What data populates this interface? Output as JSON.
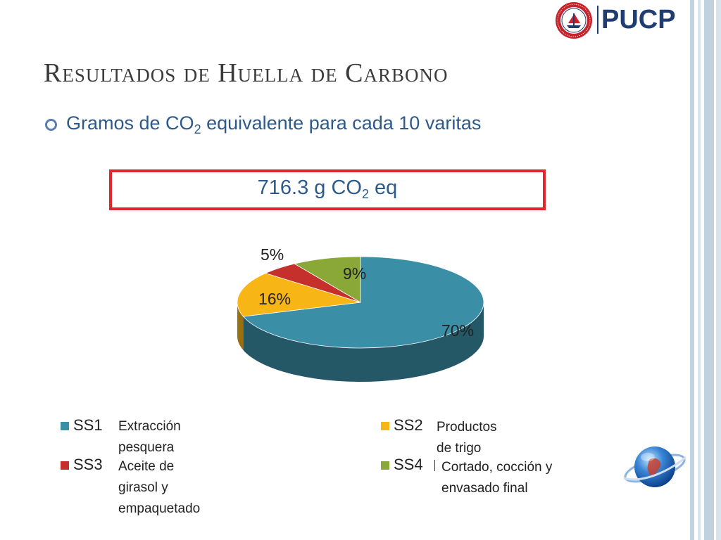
{
  "slide": {
    "title": "Resultados de Huella de Carbono",
    "bullet": {
      "text_before": "Gramos de CO",
      "subscript": "2",
      "text_after": " equivalente para cada 10 varitas"
    },
    "highlight": {
      "text_before": "716.3 g CO",
      "subscript": "2",
      "text_after": " eq"
    }
  },
  "logo": {
    "brand": "PUCP"
  },
  "colors": {
    "accent_border": "#e1262c",
    "text_blue": "#2d5a8a",
    "ss1": "#3a8ea6",
    "ss2": "#f7b516",
    "ss3": "#c52f2c",
    "ss4": "#8aa837"
  },
  "legend": [
    {
      "code": "SS1",
      "description": "Extracción pesquera"
    },
    {
      "code": "SS2",
      "description": "Productos de trigo"
    },
    {
      "code": "SS3",
      "description": "Aceite de girasol y empaquetado"
    },
    {
      "code": "SS4",
      "description": "Cortado, cocción y envasado final"
    }
  ],
  "chart_data": {
    "type": "pie",
    "title": "",
    "categories": [
      "SS1",
      "SS2",
      "SS3",
      "SS4"
    ],
    "values": [
      70,
      16,
      5,
      9
    ],
    "labels": [
      "70%",
      "16%",
      "5%",
      "9%"
    ],
    "style": "3d"
  }
}
